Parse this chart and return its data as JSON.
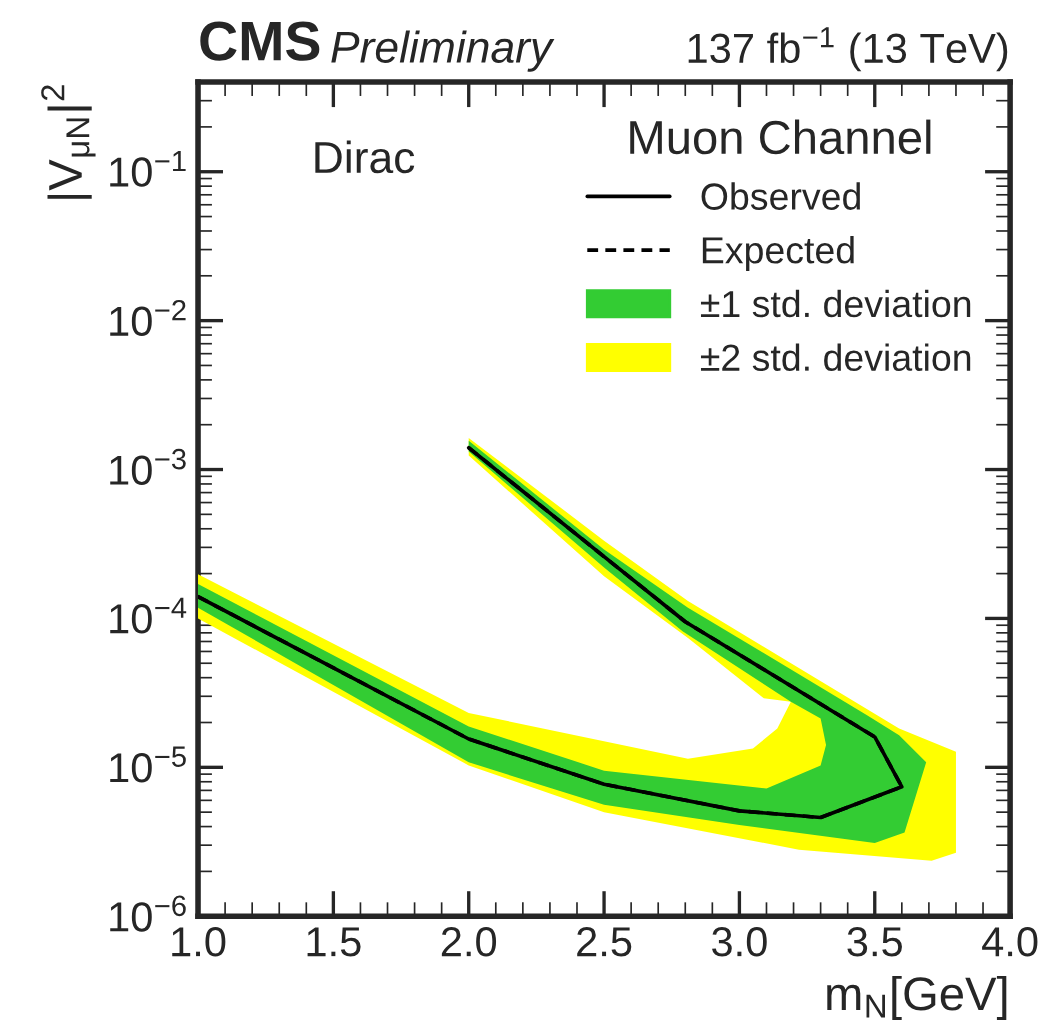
{
  "chart_data": {
    "type": "line",
    "title": "CMS",
    "subtitle": "Preliminary",
    "xlabel": "m$_{N}$[GeV]",
    "ylabel": "|V$_{μN}$|$^{2}$",
    "legend_title": "Muon Channel",
    "annotations": [
      "137 fb$^{−1}$ (13 TeV)",
      "Dirac"
    ],
    "log": "y",
    "grid": false,
    "legend": "top right",
    "xlim": [
      1.0,
      4.0
    ],
    "xticks": [
      {
        "value": 1.0,
        "label": "1.0"
      },
      {
        "value": 1.5,
        "label": "1.5"
      },
      {
        "value": 2.0,
        "label": "2.0"
      },
      {
        "value": 2.5,
        "label": "2.5"
      },
      {
        "value": 3.0,
        "label": "3.0"
      },
      {
        "value": 3.5,
        "label": "3.5"
      },
      {
        "value": 4.0,
        "label": "4.0"
      }
    ],
    "ylim": [
      1e-06,
      0.4
    ],
    "yticks": [
      {
        "value": 1e-06,
        "label": "10$^{−6}$"
      },
      {
        "value": 1e-05,
        "label": "10$^{−5}$"
      },
      {
        "value": 0.0001,
        "label": "10$^{−4}$"
      },
      {
        "value": 0.001,
        "label": "10$^{−3}$"
      },
      {
        "value": 0.01,
        "label": "10$^{−2}$"
      },
      {
        "value": 0.1,
        "label": "10$^{−1}$"
      }
    ],
    "series": [
      {
        "name": "Observed",
        "line_style": "solid",
        "color": "#000000",
        "x": [
          1.0,
          2.0,
          2.5,
          3.0,
          3.3,
          3.6,
          3.5,
          2.8,
          2.5,
          2.0
        ],
        "values": [
          0.00014,
          1.55e-05,
          7.7e-06,
          5.1e-06,
          4.6e-06,
          7.4e-06,
          1.6e-05,
          9.5e-05,
          0.00026,
          0.0014
        ]
      },
      {
        "name": "Expected",
        "line_style": "dashed",
        "color": "#000000",
        "x": [
          1.0,
          2.0,
          2.5,
          3.0,
          3.3,
          3.6,
          3.5,
          2.8,
          2.5,
          2.0
        ],
        "values": [
          0.00014,
          1.55e-05,
          7.7e-06,
          5.1e-06,
          4.6e-06,
          7.4e-06,
          1.6e-05,
          9.5e-05,
          0.00026,
          0.0014
        ]
      },
      {
        "name": "±1 std. deviation",
        "type": "area",
        "color": "#33cc33",
        "x": [
          2.0,
          2.5,
          2.81,
          3.47,
          3.59,
          3.69,
          3.61,
          3.5,
          3.0,
          2.5,
          2.0,
          1.0,
          1.0,
          2.0,
          2.5,
          3.1,
          3.3,
          3.32,
          3.3,
          3.19,
          2.79,
          2.5,
          2.0
        ],
        "values": [
          0.00156,
          0.00029,
          0.000118,
          2.25e-05,
          1.64e-05,
          1.08e-05,
          3.65e-06,
          3.1e-06,
          4.1e-06,
          5.6e-06,
          1.08e-05,
          0.000118,
          0.00017,
          1.88e-05,
          9.5e-06,
          7.2e-06,
          1.03e-05,
          1.41e-05,
          2.13e-05,
          2.76e-05,
          8.2e-05,
          0.00022,
          0.00132
        ]
      },
      {
        "name": "±2 std. deviation",
        "type": "area",
        "color": "#ffff00",
        "x": [
          2.0,
          2.5,
          2.81,
          3.59,
          3.8,
          3.8,
          3.71,
          3.22,
          2.5,
          2.0,
          1.0,
          1.0,
          2.0,
          2.81,
          3.05,
          3.14,
          3.19,
          3.09,
          2.81,
          2.5,
          2.0
        ],
        "values": [
          0.00163,
          0.000333,
          0.000131,
          1.82e-05,
          1.27e-05,
          2.67e-06,
          2.36e-06,
          2.8e-06,
          5e-06,
          1.03e-05,
          0.0001,
          0.000198,
          2.32e-05,
          1.14e-05,
          1.34e-05,
          1.82e-05,
          2.76e-05,
          2.91e-05,
          7.4e-05,
          0.000192,
          0.00124
        ]
      }
    ]
  }
}
